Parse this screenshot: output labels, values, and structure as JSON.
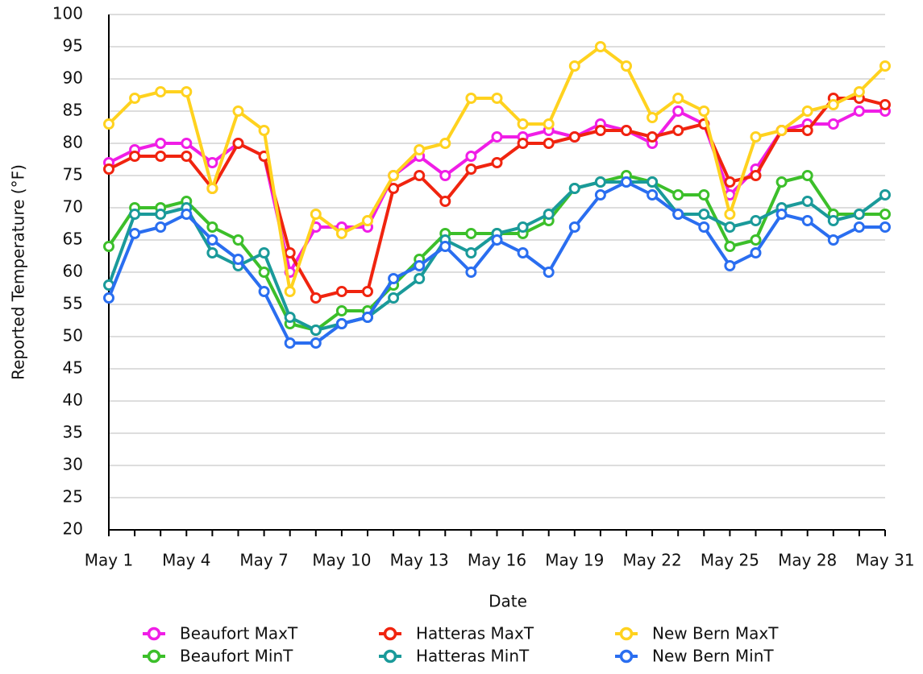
{
  "chart_data": {
    "type": "line",
    "x_label": "Date",
    "y_label": "Reported Temperature (°F)",
    "categories": [
      "May 1",
      null,
      null,
      "May 4",
      null,
      null,
      "May 7",
      null,
      null,
      "May 10",
      null,
      null,
      "May 13",
      null,
      null,
      "May 16",
      null,
      null,
      "May 19",
      null,
      null,
      "May 22",
      null,
      null,
      "May 25",
      null,
      null,
      "May 28",
      null,
      null,
      "May 31"
    ],
    "ylim": [
      20,
      100
    ],
    "yticks": [
      20,
      25,
      30,
      35,
      40,
      45,
      50,
      55,
      60,
      65,
      70,
      75,
      80,
      85,
      90,
      95,
      100
    ],
    "grid": true,
    "legend": "bottom",
    "series": [
      {
        "name": "Beaufort MaxT",
        "color": "#f01ee6",
        "values": [
          77,
          79,
          80,
          80,
          77,
          80,
          78,
          60,
          67,
          67,
          67,
          75,
          78,
          75,
          78,
          81,
          81,
          82,
          81,
          83,
          82,
          80,
          85,
          83,
          72,
          76,
          82,
          83,
          83,
          85,
          85
        ]
      },
      {
        "name": "Hatteras MaxT",
        "color": "#f0240f",
        "values": [
          76,
          78,
          78,
          78,
          73,
          80,
          78,
          63,
          56,
          57,
          57,
          73,
          75,
          71,
          76,
          77,
          80,
          80,
          81,
          82,
          82,
          81,
          82,
          83,
          74,
          75,
          82,
          82,
          87,
          87,
          86
        ]
      },
      {
        "name": "New Bern MaxT",
        "color": "#ffd21f",
        "values": [
          83,
          87,
          88,
          88,
          73,
          85,
          82,
          57,
          69,
          66,
          68,
          75,
          79,
          80,
          87,
          87,
          83,
          83,
          92,
          95,
          92,
          84,
          87,
          85,
          69,
          81,
          82,
          85,
          86,
          88,
          92
        ]
      },
      {
        "name": "Beaufort MinT",
        "color": "#3cbf2a",
        "values": [
          64,
          70,
          70,
          71,
          67,
          65,
          60,
          52,
          51,
          54,
          54,
          58,
          62,
          66,
          66,
          66,
          66,
          68,
          73,
          74,
          75,
          74,
          72,
          72,
          64,
          65,
          74,
          75,
          69,
          69,
          69
        ]
      },
      {
        "name": "Hatteras MinT",
        "color": "#1a9a9a",
        "values": [
          58,
          69,
          69,
          70,
          63,
          61,
          63,
          53,
          51,
          52,
          53,
          56,
          59,
          65,
          63,
          66,
          67,
          69,
          73,
          74,
          74,
          74,
          69,
          69,
          67,
          68,
          70,
          71,
          68,
          69,
          72
        ]
      },
      {
        "name": "New Bern MinT",
        "color": "#2a6ef0",
        "values": [
          56,
          66,
          67,
          69,
          65,
          62,
          57,
          49,
          49,
          52,
          53,
          59,
          61,
          64,
          60,
          65,
          63,
          60,
          67,
          72,
          74,
          72,
          69,
          67,
          61,
          63,
          69,
          68,
          65,
          67,
          67
        ]
      }
    ]
  }
}
